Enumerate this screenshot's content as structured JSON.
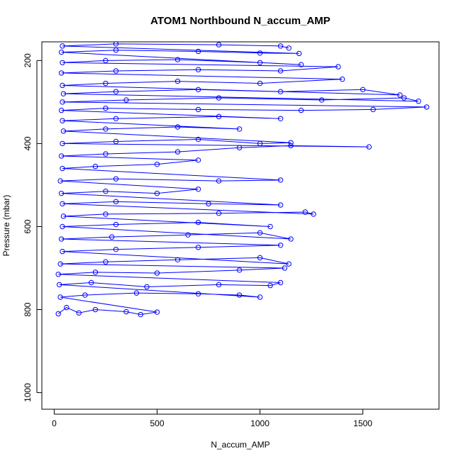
{
  "chart_data": {
    "type": "scatter",
    "title": "ATOM1 Northbound N_accum_AMP",
    "xlabel": "N_accum_AMP",
    "ylabel": "Pressure (mbar)",
    "xlim": [
      -60,
      1870
    ],
    "ylim": [
      1040,
      155
    ],
    "y_reversed": true,
    "x_ticks": [
      0,
      500,
      1000,
      1500
    ],
    "y_ticks": [
      200,
      400,
      600,
      800,
      1000
    ],
    "grid": false,
    "legend": "none",
    "marker": "open-circle",
    "connected": true,
    "color": "#0000ff",
    "series": [
      {
        "points": [
          [
            20,
            810
          ],
          [
            60,
            795
          ],
          [
            120,
            808
          ],
          [
            200,
            800
          ],
          [
            350,
            805
          ],
          [
            420,
            812
          ],
          [
            500,
            806
          ],
          [
            30,
            770
          ],
          [
            150,
            765
          ],
          [
            400,
            760
          ],
          [
            700,
            762
          ],
          [
            900,
            765
          ],
          [
            1000,
            770
          ],
          [
            25,
            740
          ],
          [
            180,
            735
          ],
          [
            450,
            745
          ],
          [
            800,
            740
          ],
          [
            1050,
            742
          ],
          [
            1100,
            735
          ],
          [
            20,
            715
          ],
          [
            200,
            710
          ],
          [
            500,
            712
          ],
          [
            900,
            705
          ],
          [
            1120,
            700
          ],
          [
            30,
            690
          ],
          [
            250,
            685
          ],
          [
            600,
            680
          ],
          [
            1000,
            675
          ],
          [
            1140,
            690
          ],
          [
            40,
            660
          ],
          [
            300,
            655
          ],
          [
            700,
            650
          ],
          [
            1100,
            645
          ],
          [
            35,
            630
          ],
          [
            280,
            625
          ],
          [
            650,
            620
          ],
          [
            1000,
            615
          ],
          [
            1150,
            630
          ],
          [
            40,
            600
          ],
          [
            300,
            595
          ],
          [
            700,
            590
          ],
          [
            1050,
            600
          ],
          [
            45,
            575
          ],
          [
            250,
            570
          ],
          [
            800,
            568
          ],
          [
            1220,
            565
          ],
          [
            1260,
            570
          ],
          [
            40,
            545
          ],
          [
            300,
            540
          ],
          [
            750,
            545
          ],
          [
            1100,
            548
          ],
          [
            35,
            520
          ],
          [
            250,
            515
          ],
          [
            500,
            520
          ],
          [
            700,
            510
          ],
          [
            30,
            490
          ],
          [
            300,
            485
          ],
          [
            800,
            490
          ],
          [
            1100,
            488
          ],
          [
            40,
            460
          ],
          [
            200,
            455
          ],
          [
            500,
            450
          ],
          [
            700,
            440
          ],
          [
            35,
            430
          ],
          [
            250,
            425
          ],
          [
            600,
            420
          ],
          [
            900,
            410
          ],
          [
            1150,
            405
          ],
          [
            1530,
            408
          ],
          [
            40,
            400
          ],
          [
            300,
            395
          ],
          [
            700,
            390
          ],
          [
            1000,
            400
          ],
          [
            1150,
            398
          ],
          [
            45,
            370
          ],
          [
            250,
            365
          ],
          [
            600,
            360
          ],
          [
            900,
            365
          ],
          [
            40,
            345
          ],
          [
            300,
            340
          ],
          [
            800,
            335
          ],
          [
            1100,
            340
          ],
          [
            35,
            320
          ],
          [
            250,
            315
          ],
          [
            700,
            318
          ],
          [
            1200,
            320
          ],
          [
            1550,
            318
          ],
          [
            1810,
            312
          ],
          [
            40,
            300
          ],
          [
            350,
            295
          ],
          [
            800,
            290
          ],
          [
            1300,
            295
          ],
          [
            1700,
            290
          ],
          [
            1770,
            298
          ],
          [
            45,
            280
          ],
          [
            300,
            275
          ],
          [
            700,
            270
          ],
          [
            1100,
            275
          ],
          [
            1500,
            270
          ],
          [
            1680,
            283
          ],
          [
            40,
            260
          ],
          [
            250,
            255
          ],
          [
            600,
            250
          ],
          [
            1000,
            255
          ],
          [
            1400,
            245
          ],
          [
            35,
            230
          ],
          [
            300,
            225
          ],
          [
            700,
            222
          ],
          [
            1100,
            225
          ],
          [
            1380,
            215
          ],
          [
            40,
            205
          ],
          [
            250,
            200
          ],
          [
            600,
            198
          ],
          [
            1000,
            205
          ],
          [
            1200,
            210
          ],
          [
            35,
            180
          ],
          [
            300,
            175
          ],
          [
            700,
            178
          ],
          [
            1000,
            182
          ],
          [
            1190,
            183
          ],
          [
            40,
            165
          ],
          [
            300,
            160
          ],
          [
            800,
            162
          ],
          [
            1100,
            165
          ],
          [
            1140,
            170
          ]
        ]
      }
    ]
  }
}
